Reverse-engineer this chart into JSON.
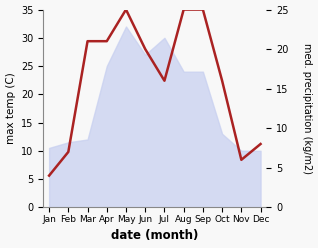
{
  "months": [
    "Jan",
    "Feb",
    "Mar",
    "Apr",
    "May",
    "Jun",
    "Jul",
    "Aug",
    "Sep",
    "Oct",
    "Nov",
    "Dec"
  ],
  "temperature": [
    10.5,
    11.5,
    12.0,
    25.0,
    32.0,
    27.0,
    30.0,
    24.0,
    24.0,
    13.0,
    10.0,
    10.0
  ],
  "precipitation": [
    4.0,
    7.0,
    21.0,
    21.0,
    25.0,
    20.0,
    16.0,
    25.0,
    25.0,
    16.0,
    6.0,
    8.0
  ],
  "fill_color": "#c8d0f0",
  "fill_alpha": 0.75,
  "precip_color": "#aa2222",
  "temp_ylim": [
    0,
    35
  ],
  "precip_ylim": [
    0,
    25
  ],
  "xlabel": "date (month)",
  "ylabel_left": "max temp (C)",
  "ylabel_right": "med. precipitation (kg/m2)",
  "bg_color": "#f8f8f8"
}
